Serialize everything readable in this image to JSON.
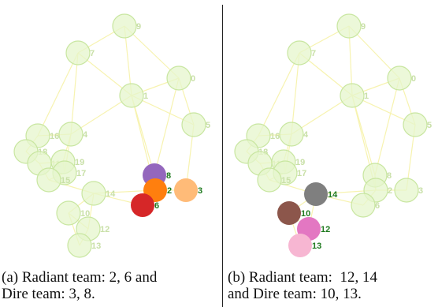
{
  "colors": {
    "faded_fill": "#e6f5cc",
    "faded_stroke": "#c8e6a0",
    "faded_label": "#c9e0a8",
    "active_label": "#1f7a1f",
    "edge": "#f7f3b0"
  },
  "panels": [
    {
      "caption": "(a) Radiant team: 2, 6 and\nDire team: 3, 8.",
      "nodes": [
        {
          "id": "9",
          "color": null
        },
        {
          "id": "7",
          "color": null
        },
        {
          "id": "0",
          "color": null
        },
        {
          "id": "1",
          "color": null
        },
        {
          "id": "5",
          "color": null
        },
        {
          "id": "16",
          "color": null
        },
        {
          "id": "4",
          "color": null
        },
        {
          "id": "18",
          "color": null
        },
        {
          "id": "11",
          "color": null
        },
        {
          "id": "19",
          "color": null
        },
        {
          "id": "17",
          "color": null
        },
        {
          "id": "15",
          "color": null
        },
        {
          "id": "14",
          "color": null
        },
        {
          "id": "10",
          "color": null
        },
        {
          "id": "12",
          "color": null
        },
        {
          "id": "13",
          "color": null
        },
        {
          "id": "8",
          "color": "#9467bd"
        },
        {
          "id": "2",
          "color": "#ff7f0e"
        },
        {
          "id": "3",
          "color": "#ffbb78"
        },
        {
          "id": "6",
          "color": "#d62728"
        }
      ]
    },
    {
      "caption": "(b) Radiant team:  12, 14\nand Dire team: 10, 13.",
      "nodes": [
        {
          "id": "9",
          "color": null
        },
        {
          "id": "7",
          "color": null
        },
        {
          "id": "0",
          "color": null
        },
        {
          "id": "1",
          "color": null
        },
        {
          "id": "5",
          "color": null
        },
        {
          "id": "16",
          "color": null
        },
        {
          "id": "4",
          "color": null
        },
        {
          "id": "18",
          "color": null
        },
        {
          "id": "11",
          "color": null
        },
        {
          "id": "19",
          "color": null
        },
        {
          "id": "17",
          "color": null
        },
        {
          "id": "15",
          "color": null
        },
        {
          "id": "8",
          "color": null
        },
        {
          "id": "2",
          "color": null
        },
        {
          "id": "3",
          "color": null
        },
        {
          "id": "6",
          "color": null
        },
        {
          "id": "14",
          "color": "#7f7f7f"
        },
        {
          "id": "10",
          "color": "#8c564b"
        },
        {
          "id": "12",
          "color": "#e377c2"
        },
        {
          "id": "13",
          "color": "#f7b6d2"
        }
      ]
    }
  ]
}
